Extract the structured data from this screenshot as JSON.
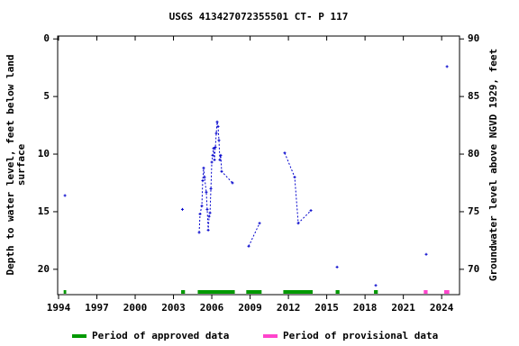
{
  "chart_data": {
    "type": "line",
    "title": "USGS 413427072355501 CT-  P  117",
    "ylabel": [
      "Depth to water level, feet below land",
      "surface"
    ],
    "y2label": "Groundwater level above NGVD 1929, feet",
    "color": "#0000cc",
    "series": [
      {
        "x": [
          1994.5
        ],
        "values": [
          13.6
        ]
      },
      {
        "x": [
          2003.7
        ],
        "values": [
          14.8
        ]
      },
      {
        "x": [
          2005.01,
          2005.08,
          2005.22,
          2005.29,
          2005.36,
          2005.43,
          2005.57,
          2005.64,
          2005.72,
          2005.79,
          2005.86,
          2005.93,
          2006.0,
          2006.07,
          2006.14,
          2006.21,
          2006.28,
          2006.35,
          2006.42,
          2006.49,
          2006.56,
          2006.63,
          2006.7,
          2006.77,
          2007.62
        ],
        "values": [
          16.8,
          15.2,
          14.5,
          12.3,
          11.2,
          12.0,
          13.3,
          14.8,
          16.6,
          15.4,
          15.1,
          13.0,
          10.7,
          10.1,
          9.5,
          10.5,
          9.4,
          8.2,
          7.2,
          7.6,
          8.8,
          10.5,
          10.1,
          11.5,
          12.5
        ]
      },
      {
        "x": [
          2008.89,
          2009.74
        ],
        "values": [
          18.0,
          16.0
        ]
      },
      {
        "x": [
          2011.71,
          2012.49,
          2012.77,
          2013.76
        ],
        "values": [
          9.9,
          12.0,
          16.0,
          14.9
        ]
      },
      {
        "x": [
          2015.81
        ],
        "values": [
          19.8
        ]
      },
      {
        "x": [
          2018.84
        ],
        "values": [
          21.4
        ]
      },
      {
        "x": [
          2022.79
        ],
        "values": [
          18.7
        ]
      },
      {
        "x": [
          2024.42
        ],
        "values": [
          2.4
        ]
      }
    ],
    "periods": [
      {
        "name": "Period of approved data",
        "color": "#009900",
        "ranges": [
          [
            1994.4,
            1994.6
          ],
          [
            2003.6,
            2003.9
          ],
          [
            2004.9,
            2007.8
          ],
          [
            2008.7,
            2009.9
          ],
          [
            2011.6,
            2013.9
          ],
          [
            2015.7,
            2016.0
          ],
          [
            2018.7,
            2019.0
          ]
        ]
      },
      {
        "name": "Period of provisional data",
        "color": "#ff44cc",
        "ranges": [
          [
            2022.6,
            2022.9
          ],
          [
            2024.2,
            2024.6
          ]
        ]
      }
    ],
    "xlim": [
      1993.93,
      2025.4
    ],
    "xticks": [
      1994,
      1997,
      2000,
      2003,
      2006,
      2009,
      2012,
      2015,
      2018,
      2021,
      2024
    ],
    "ylim": [
      -0.25,
      22.2
    ],
    "yticks": [
      0,
      5,
      10,
      15,
      20
    ],
    "y_inverted": true,
    "y2lim": [
      67.8,
      90.25
    ],
    "y2ticks": [
      70,
      75,
      80,
      85,
      90
    ]
  }
}
